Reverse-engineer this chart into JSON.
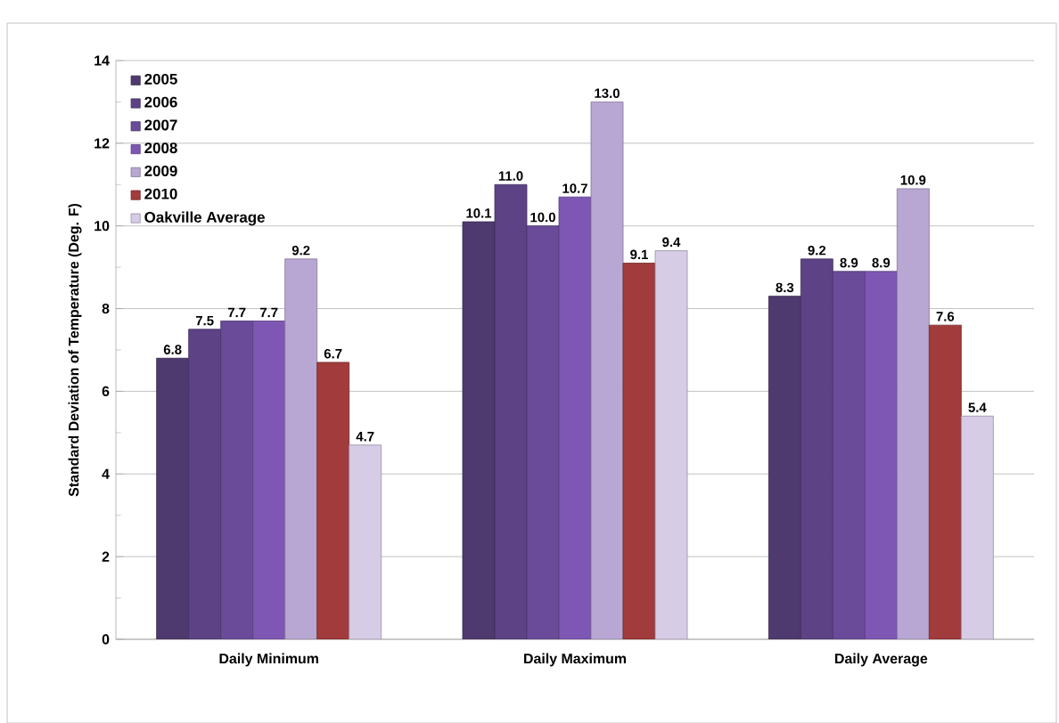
{
  "chart_data": {
    "type": "bar",
    "ylabel": "Standard Deviation of Temperature (Deg. F)",
    "categories": [
      "Daily Minimum",
      "Daily Maximum",
      "Daily Average"
    ],
    "series": [
      {
        "name": "2005",
        "color": "#4e3a6e",
        "values": [
          6.8,
          10.1,
          8.3
        ],
        "value_labels": [
          "6.8",
          "10.1",
          "8.3"
        ]
      },
      {
        "name": "2006",
        "color": "#5d4386",
        "values": [
          7.5,
          11.0,
          9.2
        ],
        "value_labels": [
          "7.5",
          "11.0",
          "9.2"
        ]
      },
      {
        "name": "2007",
        "color": "#6a4b9a",
        "values": [
          7.7,
          10.0,
          8.9
        ],
        "value_labels": [
          "7.7",
          "10.0",
          "8.9"
        ]
      },
      {
        "name": "2008",
        "color": "#7e57b5",
        "values": [
          7.7,
          10.7,
          8.9
        ],
        "value_labels": [
          "7.7",
          "10.7",
          "8.9"
        ]
      },
      {
        "name": "2009",
        "color": "#b9a7d3",
        "values": [
          9.2,
          13.0,
          10.9
        ],
        "value_labels": [
          "9.2",
          "13.0",
          "10.9"
        ]
      },
      {
        "name": "2010",
        "color": "#a23b3b",
        "values": [
          6.7,
          9.1,
          7.6
        ],
        "value_labels": [
          "6.7",
          "9.1",
          "7.6"
        ]
      },
      {
        "name": "Oakville Average",
        "color": "#d6cce6",
        "values": [
          4.7,
          9.4,
          5.4
        ],
        "value_labels": [
          "4.7",
          "9.4",
          "5.4"
        ]
      }
    ],
    "ylim": [
      0,
      14
    ],
    "yticks": [
      0,
      2,
      4,
      6,
      8,
      10,
      12,
      14
    ],
    "grid": "y",
    "legend": "top left"
  }
}
